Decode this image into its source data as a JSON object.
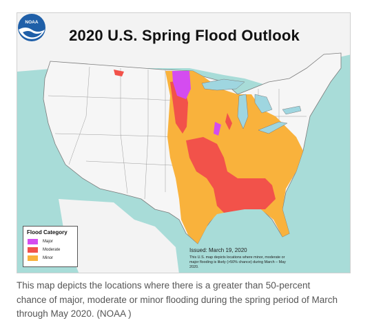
{
  "map": {
    "title": "2020 U.S. Spring Flood Outlook",
    "colors": {
      "ocean": "#a8dcd8",
      "land": "#f6f6f6",
      "lakes": "#9fd6e0",
      "state_border": "#7a7a7a",
      "major": "#d44cf0",
      "moderate": "#f2524a",
      "minor": "#f9b23c"
    }
  },
  "legend": {
    "title": "Flood Category",
    "items": [
      {
        "label": "Major",
        "color": "#d44cf0"
      },
      {
        "label": "Moderate",
        "color": "#f2524a"
      },
      {
        "label": "Minor",
        "color": "#f9b23c"
      }
    ]
  },
  "issued": "Issued: March 19, 2020",
  "disclaimer": "This U.S. map depicts locations where minor, moderate or major flooding is likely (>50% chance) during March – May 2020.",
  "logo": {
    "text": "NOAA",
    "icon": "noaa-logo-icon"
  },
  "caption": "This map depicts the locations where there is a greater than 50-percent chance of major, moderate or minor flooding during the spring period of March through May 2020. (NOAA )"
}
